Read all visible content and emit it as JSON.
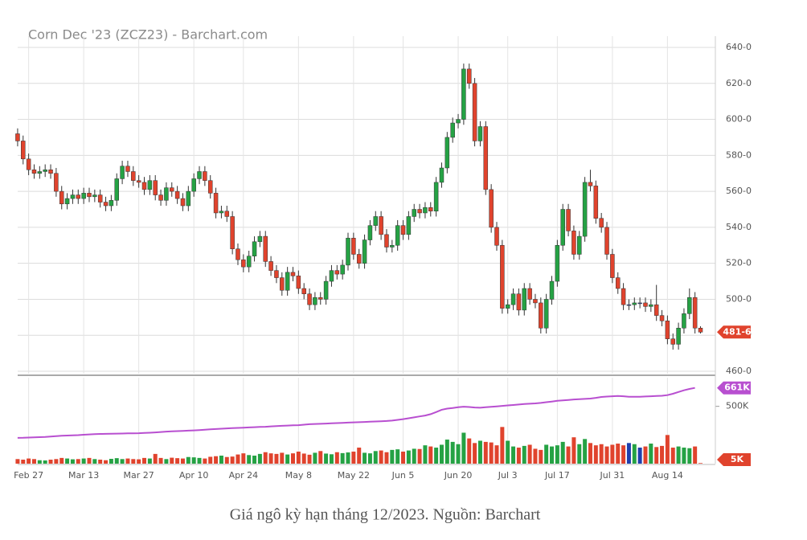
{
  "chart_data": {
    "type": "candlestick",
    "title": "Corn Dec '23 (ZCZ23) - Barchart.com",
    "open": [
      592,
      588,
      578,
      572,
      570,
      571,
      572,
      570,
      560,
      553,
      556,
      558,
      556,
      559,
      557,
      558,
      554,
      552,
      555,
      567,
      574,
      571,
      566,
      565,
      561,
      566,
      558,
      555,
      562,
      560,
      556,
      552,
      560,
      567,
      571,
      566,
      559,
      548,
      549,
      546,
      528,
      522,
      518,
      524,
      532,
      535,
      521,
      516,
      512,
      505,
      515,
      513,
      506,
      503,
      497,
      501,
      500,
      510,
      516,
      514,
      519,
      534,
      525,
      520,
      533,
      541,
      546,
      536,
      529,
      530,
      541,
      536,
      546,
      550,
      548,
      551,
      549,
      565,
      573,
      590,
      598,
      600,
      628,
      620,
      588,
      596,
      561,
      540,
      530,
      495,
      497,
      503,
      494,
      506,
      500,
      498,
      484,
      500,
      510,
      530,
      550,
      538,
      525,
      535,
      565,
      563,
      545,
      540,
      525,
      512,
      506,
      497,
      497,
      498,
      498,
      496,
      497,
      491,
      488,
      478,
      475,
      484,
      492,
      501,
      484
    ],
    "high": [
      595,
      591,
      581,
      575,
      574,
      575,
      575,
      573,
      563,
      559,
      561,
      561,
      562,
      562,
      561,
      561,
      557,
      558,
      570,
      577,
      577,
      574,
      569,
      568,
      569,
      569,
      561,
      565,
      565,
      563,
      559,
      563,
      570,
      574,
      574,
      569,
      562,
      552,
      552,
      549,
      531,
      525,
      527,
      535,
      538,
      538,
      524,
      519,
      515,
      518,
      518,
      516,
      509,
      506,
      504,
      504,
      513,
      519,
      519,
      522,
      537,
      537,
      528,
      536,
      544,
      549,
      549,
      539,
      533,
      544,
      544,
      549,
      553,
      553,
      554,
      554,
      568,
      576,
      593,
      601,
      603,
      631,
      631,
      623,
      599,
      599,
      564,
      543,
      533,
      500,
      506,
      506,
      509,
      509,
      503,
      501,
      503,
      513,
      533,
      553,
      553,
      541,
      538,
      568,
      572,
      566,
      548,
      543,
      528,
      515,
      509,
      500,
      501,
      501,
      501,
      500,
      508,
      494,
      491,
      481,
      487,
      495,
      506,
      504,
      485
    ],
    "low": [
      585,
      575,
      569,
      567,
      567,
      568,
      567,
      557,
      550,
      550,
      553,
      553,
      553,
      554,
      554,
      551,
      549,
      549,
      552,
      564,
      568,
      563,
      562,
      558,
      558,
      555,
      552,
      552,
      557,
      553,
      549,
      549,
      557,
      564,
      563,
      556,
      545,
      545,
      543,
      525,
      519,
      515,
      515,
      521,
      529,
      518,
      513,
      509,
      502,
      502,
      510,
      503,
      500,
      494,
      494,
      497,
      497,
      507,
      511,
      511,
      516,
      522,
      517,
      517,
      530,
      538,
      533,
      526,
      526,
      527,
      533,
      533,
      543,
      545,
      545,
      546,
      546,
      562,
      570,
      587,
      595,
      597,
      617,
      585,
      585,
      558,
      537,
      527,
      492,
      492,
      494,
      491,
      491,
      497,
      495,
      481,
      481,
      497,
      507,
      527,
      535,
      522,
      522,
      532,
      560,
      542,
      537,
      522,
      509,
      503,
      494,
      494,
      494,
      495,
      493,
      493,
      488,
      485,
      475,
      472,
      472,
      481,
      489,
      481,
      481
    ],
    "close": [
      588,
      578,
      572,
      570,
      571,
      572,
      570,
      560,
      553,
      556,
      558,
      556,
      559,
      557,
      558,
      554,
      552,
      555,
      567,
      574,
      571,
      566,
      565,
      561,
      566,
      558,
      555,
      562,
      560,
      556,
      552,
      560,
      567,
      571,
      566,
      559,
      548,
      549,
      546,
      528,
      522,
      518,
      524,
      532,
      535,
      521,
      516,
      512,
      505,
      515,
      513,
      506,
      503,
      497,
      501,
      500,
      510,
      516,
      514,
      519,
      534,
      525,
      520,
      533,
      541,
      546,
      536,
      529,
      530,
      541,
      536,
      546,
      550,
      548,
      551,
      549,
      565,
      573,
      590,
      598,
      600,
      628,
      620,
      588,
      596,
      561,
      540,
      530,
      495,
      497,
      503,
      494,
      506,
      500,
      498,
      484,
      500,
      510,
      530,
      550,
      538,
      525,
      535,
      565,
      563,
      545,
      540,
      525,
      512,
      506,
      497,
      497,
      498,
      498,
      496,
      497,
      491,
      488,
      478,
      475,
      484,
      492,
      501,
      484,
      481.75
    ],
    "colors": {
      "up": "#25a244",
      "down": "#e0432d",
      "flat": "#1f3fae"
    },
    "ylim": [
      460,
      640
    ],
    "yticks": [
      {
        "value": 460,
        "label": "460-0"
      },
      {
        "value": 480,
        "label": "480-0"
      },
      {
        "value": 500,
        "label": "500-0"
      },
      {
        "value": 520,
        "label": "520-0"
      },
      {
        "value": 540,
        "label": "540-0"
      },
      {
        "value": 560,
        "label": "560-0"
      },
      {
        "value": 580,
        "label": "580-0"
      },
      {
        "value": 600,
        "label": "600-0"
      },
      {
        "value": 620,
        "label": "620-0"
      },
      {
        "value": 640,
        "label": "640-0"
      }
    ],
    "last_price": {
      "value": 481.75,
      "label": "481-6"
    },
    "xlim": [
      -3.2,
      126.7
    ],
    "xticks": [
      {
        "value": 2,
        "label": "Feb 27"
      },
      {
        "value": 12,
        "label": "Mar 13"
      },
      {
        "value": 22,
        "label": "Mar 27"
      },
      {
        "value": 32,
        "label": "Apr 10"
      },
      {
        "value": 41,
        "label": "Apr 24"
      },
      {
        "value": 51,
        "label": "May 8"
      },
      {
        "value": 61,
        "label": "May 22"
      },
      {
        "value": 70,
        "label": "Jun 5"
      },
      {
        "value": 80,
        "label": "Jun 20"
      },
      {
        "value": 89,
        "label": "Jul 3"
      },
      {
        "value": 98,
        "label": "Jul 17"
      },
      {
        "value": 108,
        "label": "Jul 31"
      },
      {
        "value": 118,
        "label": "Aug 14"
      }
    ],
    "grid": true,
    "volume": [
      40,
      35,
      45,
      40,
      30,
      28,
      35,
      40,
      50,
      45,
      38,
      40,
      45,
      50,
      40,
      35,
      30,
      42,
      48,
      40,
      45,
      40,
      38,
      50,
      45,
      85,
      50,
      40,
      52,
      48,
      45,
      58,
      55,
      50,
      45,
      60,
      65,
      70,
      58,
      62,
      80,
      90,
      75,
      70,
      85,
      100,
      90,
      85,
      95,
      80,
      90,
      105,
      88,
      78,
      95,
      110,
      88,
      82,
      100,
      92,
      98,
      105,
      140,
      95,
      90,
      110,
      115,
      100,
      120,
      125,
      105,
      115,
      130,
      128,
      160,
      150,
      140,
      165,
      210,
      190,
      170,
      270,
      220,
      180,
      200,
      190,
      185,
      160,
      320,
      200,
      150,
      140,
      155,
      165,
      130,
      120,
      165,
      150,
      160,
      190,
      150,
      230,
      170,
      215,
      180,
      160,
      170,
      150,
      165,
      175,
      160,
      180,
      170,
      140,
      150,
      175,
      145,
      155,
      250,
      140,
      150,
      140,
      135,
      150,
      5
    ],
    "open_interest": [
      225,
      226,
      228,
      229,
      231,
      233,
      236,
      240,
      243,
      245,
      247,
      249,
      252,
      255,
      257,
      259,
      260,
      261,
      262,
      263,
      264,
      265,
      266,
      268,
      270,
      273,
      276,
      280,
      282,
      284,
      286,
      288,
      290,
      293,
      296,
      299,
      302,
      305,
      308,
      310,
      312,
      314,
      316,
      318,
      320,
      322,
      325,
      328,
      330,
      332,
      334,
      336,
      340,
      344,
      346,
      348,
      350,
      352,
      354,
      356,
      358,
      360,
      362,
      364,
      366,
      368,
      370,
      372,
      376,
      382,
      388,
      396,
      404,
      412,
      420,
      432,
      450,
      470,
      480,
      486,
      492,
      497,
      494,
      490,
      488,
      492,
      496,
      500,
      504,
      508,
      512,
      516,
      520,
      523,
      526,
      530,
      536,
      542,
      548,
      552,
      556,
      560,
      562,
      565,
      568,
      574,
      582,
      585,
      588,
      591,
      588,
      584,
      583,
      584,
      586,
      588,
      590,
      592,
      598,
      610,
      625,
      640,
      652,
      661,
      null
    ],
    "open_interest_color": "#b84fd0",
    "vlim": [
      0,
      750
    ],
    "vticks": [
      {
        "value": 500,
        "label": "500K"
      }
    ],
    "last_volume": {
      "value": 5,
      "label": "5K"
    },
    "last_open_interest": {
      "value": 661,
      "label": "661K"
    }
  },
  "caption": "Giá ngô kỳ hạn tháng 12/2023. Nguồn: Barchart"
}
